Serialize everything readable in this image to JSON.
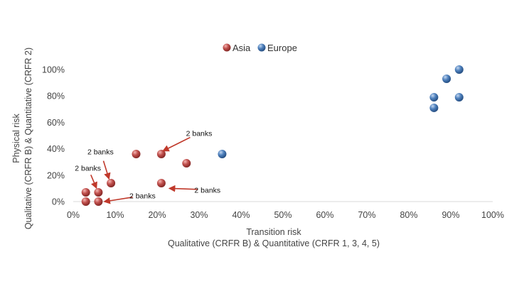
{
  "chart_data": {
    "type": "scatter",
    "title": "",
    "xlabel": [
      "Transition risk",
      "Qualitative (CRFR B) & Quantitative (CRFR 1, 3, 4, 5)"
    ],
    "ylabel": [
      "Physical risk",
      "Qualitative (CRFR B) &  Quantitative (CRFR 2)"
    ],
    "xlim": [
      0,
      100
    ],
    "ylim": [
      0,
      100
    ],
    "x_ticks": [
      "0%",
      "10%",
      "20%",
      "30%",
      "40%",
      "50%",
      "60%",
      "70%",
      "80%",
      "90%",
      "100%"
    ],
    "y_ticks": [
      "0%",
      "20%",
      "40%",
      "60%",
      "80%",
      "100%"
    ],
    "grid": false,
    "legend_position": "top-center",
    "series": [
      {
        "name": "Asia",
        "color": "#c0504d",
        "points": [
          {
            "x": 3,
            "y": 7
          },
          {
            "x": 6,
            "y": 7
          },
          {
            "x": 3,
            "y": 0
          },
          {
            "x": 6,
            "y": 0
          },
          {
            "x": 9,
            "y": 14
          },
          {
            "x": 15,
            "y": 36
          },
          {
            "x": 21,
            "y": 36
          },
          {
            "x": 21,
            "y": 14
          },
          {
            "x": 27,
            "y": 29
          }
        ]
      },
      {
        "name": "Europe",
        "color": "#4f81bd",
        "points": [
          {
            "x": 35.5,
            "y": 36
          },
          {
            "x": 86,
            "y": 79
          },
          {
            "x": 86,
            "y": 71
          },
          {
            "x": 89,
            "y": 93
          },
          {
            "x": 92,
            "y": 100
          },
          {
            "x": 92,
            "y": 79
          }
        ]
      }
    ],
    "annotations": [
      {
        "text": "2 banks",
        "text_at": {
          "x": 30,
          "y": 52
        },
        "arrow_to": {
          "x": 21.5,
          "y": 38.5
        }
      },
      {
        "text": "2 banks",
        "text_at": {
          "x": 6.5,
          "y": 38
        },
        "arrow_to": {
          "x": 8.5,
          "y": 17.5
        }
      },
      {
        "text": "2 banks",
        "text_at": {
          "x": 3.5,
          "y": 25.5
        },
        "arrow_to": {
          "x": 5.5,
          "y": 10.5
        }
      },
      {
        "text": "2 banks",
        "text_at": {
          "x": 16.5,
          "y": 4.5
        },
        "arrow_to": {
          "x": 7.5,
          "y": 0
        }
      },
      {
        "text": "2 banks",
        "text_at": {
          "x": 32,
          "y": 9
        },
        "arrow_to": {
          "x": 23,
          "y": 10
        }
      }
    ]
  }
}
